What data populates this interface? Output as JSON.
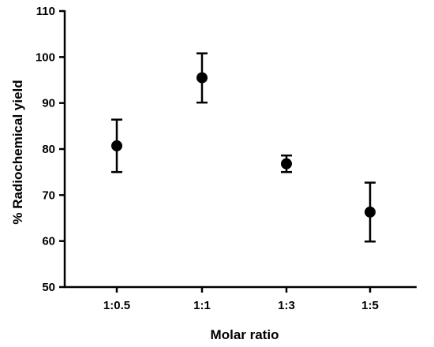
{
  "chart_data": {
    "type": "scatter",
    "title": "",
    "xlabel": "Molar ratio",
    "ylabel": "% Radiochemical yield",
    "categories": [
      "1:0.5",
      "1:1",
      "1:3",
      "1:5"
    ],
    "series": [
      {
        "values": [
          80.7,
          95.5,
          76.8,
          66.3
        ],
        "err_low": [
          75.0,
          90.1,
          75.0,
          59.9
        ],
        "err_high": [
          86.4,
          100.8,
          78.6,
          72.7
        ]
      }
    ],
    "ylim": [
      50,
      110
    ],
    "yticks": [
      50,
      60,
      70,
      80,
      90,
      100,
      110
    ],
    "grid": false,
    "legend": "none",
    "colors": {
      "marker": "#000000",
      "axis": "#000000"
    }
  }
}
